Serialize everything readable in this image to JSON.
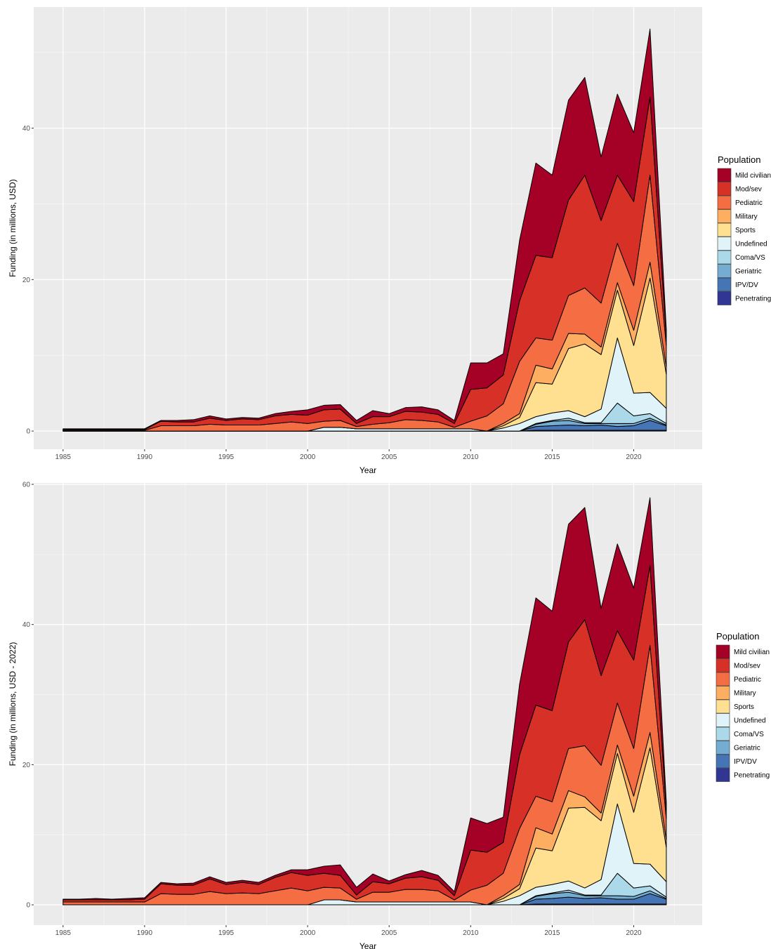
{
  "chart_data": [
    {
      "type": "area",
      "stacked": true,
      "title": "",
      "xlabel": "Year",
      "ylabel": "Funding (in millions, USD)",
      "xlim": [
        1983.2,
        2024.2
      ],
      "ylim": [
        -2.4,
        56
      ],
      "x_ticks": [
        "1985",
        "1990",
        "1995",
        "2000",
        "2005",
        "2010",
        "2015",
        "2020"
      ],
      "y_ticks": [
        "0",
        "20",
        "40"
      ],
      "grid": true,
      "legend_title": "Population",
      "legend_position": "right",
      "x": [
        1985,
        1986,
        1987,
        1988,
        1989,
        1990,
        1991,
        1992,
        1993,
        1994,
        1995,
        1996,
        1997,
        1998,
        1999,
        2000,
        2001,
        2002,
        2003,
        2004,
        2005,
        2006,
        2007,
        2008,
        2009,
        2010,
        2011,
        2012,
        2013,
        2014,
        2015,
        2016,
        2017,
        2018,
        2019,
        2020,
        2021,
        2022
      ],
      "series": [
        {
          "name": "Penetrating",
          "color": "#313695",
          "values": [
            0,
            0,
            0,
            0,
            0,
            0,
            0,
            0,
            0,
            0,
            0,
            0,
            0,
            0,
            0,
            0,
            0,
            0,
            0,
            0,
            0,
            0,
            0,
            0,
            0,
            0,
            0,
            0,
            0,
            0.1,
            0.1,
            0.1,
            0.1,
            0.1,
            0.1,
            0.1,
            0.1,
            0.1
          ]
        },
        {
          "name": "IPV/DV",
          "color": "#4575b4",
          "values": [
            0,
            0,
            0,
            0,
            0,
            0,
            0,
            0,
            0,
            0,
            0,
            0,
            0,
            0,
            0,
            0,
            0,
            0,
            0,
            0,
            0,
            0,
            0,
            0,
            0,
            0,
            0,
            0,
            0,
            0.5,
            0.6,
            0.7,
            0.6,
            0.7,
            0.5,
            0.6,
            1.3,
            0.6
          ]
        },
        {
          "name": "Geriatric",
          "color": "#74add1",
          "values": [
            0,
            0,
            0,
            0,
            0,
            0,
            0,
            0,
            0,
            0,
            0,
            0,
            0,
            0,
            0,
            0,
            0,
            0,
            0,
            0,
            0,
            0,
            0,
            0,
            0,
            0,
            0,
            0,
            0,
            0.3,
            0.6,
            0.6,
            0.3,
            0.2,
            0.4,
            0.3,
            0.3,
            0.1
          ]
        },
        {
          "name": "Coma/VS",
          "color": "#abd9e9",
          "values": [
            0,
            0,
            0,
            0,
            0,
            0,
            0,
            0,
            0,
            0,
            0,
            0,
            0,
            0,
            0,
            0,
            0,
            0,
            0,
            0,
            0,
            0,
            0,
            0,
            0,
            0,
            0,
            0,
            0,
            0.1,
            0.1,
            0.3,
            0.1,
            0.1,
            2.7,
            1.0,
            0.6,
            0.2
          ]
        },
        {
          "name": "Undefined",
          "color": "#e0f3f8",
          "values": [
            0,
            0,
            0,
            0,
            0,
            0,
            0,
            0,
            0,
            0,
            0,
            0,
            0,
            0,
            0,
            0,
            0.5,
            0.5,
            0.3,
            0.3,
            0.3,
            0.3,
            0.3,
            0.3,
            0.3,
            0.3,
            0,
            0.4,
            1.0,
            0.9,
            1.0,
            1.0,
            0.8,
            1.8,
            8.6,
            3.0,
            2.8,
            2.0
          ]
        },
        {
          "name": "Sports",
          "color": "#fee090",
          "values": [
            0,
            0,
            0,
            0,
            0,
            0,
            0,
            0,
            0,
            0,
            0,
            0,
            0,
            0,
            0,
            0,
            0,
            0,
            0,
            0,
            0,
            0,
            0,
            0,
            0,
            0,
            0,
            0.3,
            0.8,
            4.5,
            3.8,
            8.2,
            9.6,
            7.2,
            6.3,
            6.3,
            15.1,
            4.5
          ]
        },
        {
          "name": "Military",
          "color": "#fdae61",
          "values": [
            0,
            0,
            0,
            0,
            0,
            0,
            0,
            0,
            0,
            0,
            0,
            0,
            0,
            0,
            0,
            0,
            0,
            0,
            0,
            0,
            0,
            0,
            0,
            0,
            0,
            0,
            0,
            0.3,
            0.5,
            2.3,
            2.0,
            2.0,
            1.3,
            1.0,
            1.0,
            2.0,
            2.1,
            1.0
          ]
        },
        {
          "name": "Pediatric",
          "color": "#f46d43",
          "values": [
            0.1,
            0.1,
            0.1,
            0.1,
            0.1,
            0.1,
            0.7,
            0.7,
            0.7,
            0.9,
            0.8,
            0.8,
            0.8,
            1.0,
            1.2,
            1.0,
            0.8,
            0.9,
            0.3,
            0.6,
            0.8,
            1.2,
            1.1,
            0.9,
            0.2,
            1.0,
            2.0,
            2.6,
            6.9,
            3.6,
            3.8,
            5.0,
            6.1,
            5.8,
            5.2,
            5.9,
            11.5,
            2.8
          ]
        },
        {
          "name": "Mod/sev",
          "color": "#d73027",
          "values": [
            0.1,
            0.1,
            0.1,
            0.1,
            0.1,
            0.1,
            0.6,
            0.5,
            0.5,
            0.8,
            0.6,
            0.8,
            0.7,
            1.0,
            1.0,
            1.1,
            1.5,
            1.5,
            0.4,
            1.0,
            0.8,
            1.1,
            1.1,
            1.0,
            0.5,
            4.2,
            3.7,
            3.8,
            8.0,
            10.9,
            10.9,
            12.6,
            14.9,
            10.9,
            9.0,
            11.1,
            10.3,
            1.1
          ]
        },
        {
          "name": "Mild civilian",
          "color": "#a50026",
          "values": [
            0.1,
            0.1,
            0.1,
            0.1,
            0.1,
            0.1,
            0.1,
            0.2,
            0.3,
            0.3,
            0.2,
            0.2,
            0.2,
            0.3,
            0.4,
            0.7,
            0.6,
            0.6,
            0.4,
            0.8,
            0.4,
            0.5,
            0.7,
            0.6,
            0.4,
            3.5,
            3.3,
            2.8,
            8.0,
            12.2,
            10.9,
            13.2,
            12.9,
            8.4,
            10.7,
            9.1,
            9.0,
            1.0
          ]
        }
      ]
    },
    {
      "type": "area",
      "stacked": true,
      "title": "",
      "xlabel": "Year",
      "ylabel": "Funding (in millions, USD - 2022)",
      "xlim": [
        1983.2,
        2024.2
      ],
      "ylim": [
        -2.9,
        60.2
      ],
      "x_ticks": [
        "1985",
        "1990",
        "1995",
        "2000",
        "2005",
        "2010",
        "2015",
        "2020"
      ],
      "y_ticks": [
        "0",
        "20",
        "40",
        "60"
      ],
      "grid": true,
      "legend_title": "Population",
      "legend_position": "right",
      "x": [
        1985,
        1986,
        1987,
        1988,
        1989,
        1990,
        1991,
        1992,
        1993,
        1994,
        1995,
        1996,
        1997,
        1998,
        1999,
        2000,
        2001,
        2002,
        2003,
        2004,
        2005,
        2006,
        2007,
        2008,
        2009,
        2010,
        2011,
        2012,
        2013,
        2014,
        2015,
        2016,
        2017,
        2018,
        2019,
        2020,
        2021,
        2022
      ],
      "series": [
        {
          "name": "Penetrating",
          "color": "#313695",
          "values": [
            0,
            0,
            0,
            0,
            0,
            0,
            0,
            0,
            0,
            0,
            0,
            0,
            0,
            0,
            0,
            0,
            0,
            0,
            0,
            0,
            0,
            0,
            0,
            0,
            0,
            0,
            0,
            0,
            0,
            0.1,
            0.1,
            0.1,
            0.1,
            0.1,
            0.1,
            0.1,
            0.1,
            0.1
          ]
        },
        {
          "name": "IPV/DV",
          "color": "#4575b4",
          "values": [
            0,
            0,
            0,
            0,
            0,
            0,
            0,
            0,
            0,
            0,
            0,
            0,
            0,
            0,
            0,
            0,
            0,
            0,
            0,
            0,
            0,
            0,
            0,
            0,
            0,
            0,
            0,
            0,
            0,
            0.7,
            0.8,
            1.0,
            0.8,
            0.9,
            0.7,
            0.7,
            1.5,
            0.7
          ]
        },
        {
          "name": "Geriatric",
          "color": "#74add1",
          "values": [
            0,
            0,
            0,
            0,
            0,
            0,
            0,
            0,
            0,
            0,
            0,
            0,
            0,
            0,
            0,
            0,
            0,
            0,
            0,
            0,
            0,
            0,
            0,
            0,
            0,
            0,
            0,
            0,
            0,
            0.4,
            0.7,
            0.7,
            0.4,
            0.3,
            0.5,
            0.4,
            0.4,
            0.1
          ]
        },
        {
          "name": "Coma/VS",
          "color": "#abd9e9",
          "values": [
            0,
            0,
            0,
            0,
            0,
            0,
            0,
            0,
            0,
            0,
            0,
            0,
            0,
            0,
            0,
            0,
            0,
            0,
            0,
            0,
            0,
            0,
            0,
            0,
            0,
            0,
            0,
            0,
            0,
            0.1,
            0.1,
            0.3,
            0.1,
            0.1,
            3.2,
            1.2,
            0.7,
            0.2
          ]
        },
        {
          "name": "Undefined",
          "color": "#e0f3f8",
          "values": [
            0,
            0,
            0,
            0,
            0,
            0,
            0,
            0,
            0,
            0,
            0,
            0,
            0,
            0,
            0,
            0,
            0.7,
            0.7,
            0.4,
            0.4,
            0.4,
            0.4,
            0.4,
            0.4,
            0.4,
            0.4,
            0,
            0.5,
            1.3,
            1.2,
            1.2,
            1.3,
            1.0,
            2.2,
            9.9,
            3.5,
            3.1,
            2.2
          ]
        },
        {
          "name": "Sports",
          "color": "#fee090",
          "values": [
            0,
            0,
            0,
            0,
            0,
            0,
            0,
            0,
            0,
            0,
            0,
            0,
            0,
            0,
            0,
            0,
            0,
            0,
            0,
            0,
            0,
            0,
            0,
            0,
            0,
            0,
            0,
            0.4,
            1.0,
            5.6,
            4.8,
            10.4,
            11.5,
            8.4,
            7.2,
            7.3,
            16.6,
            4.9
          ]
        },
        {
          "name": "Military",
          "color": "#fdae61",
          "values": [
            0,
            0,
            0,
            0,
            0,
            0,
            0,
            0,
            0,
            0,
            0,
            0,
            0,
            0,
            0,
            0,
            0,
            0,
            0,
            0,
            0,
            0,
            0,
            0,
            0,
            0,
            0,
            0.4,
            0.6,
            2.9,
            2.4,
            2.5,
            1.5,
            1.1,
            1.2,
            2.3,
            2.2,
            1.1
          ]
        },
        {
          "name": "Pediatric",
          "color": "#f46d43",
          "values": [
            0.4,
            0.4,
            0.4,
            0.4,
            0.4,
            0.4,
            1.6,
            1.5,
            1.5,
            1.9,
            1.6,
            1.7,
            1.6,
            2.0,
            2.4,
            2.0,
            1.8,
            1.7,
            0.4,
            1.4,
            1.4,
            1.8,
            1.8,
            1.6,
            0.3,
            1.7,
            2.8,
            3.2,
            8.0,
            4.5,
            4.6,
            6.0,
            7.3,
            6.8,
            6.0,
            6.8,
            12.4,
            3.0
          ]
        },
        {
          "name": "Mod/sev",
          "color": "#d73027",
          "values": [
            0.3,
            0.3,
            0.3,
            0.3,
            0.3,
            0.4,
            1.4,
            1.3,
            1.3,
            1.8,
            1.3,
            1.5,
            1.3,
            1.9,
            2.2,
            2.2,
            2.0,
            1.8,
            0.6,
            1.5,
            1.2,
            1.6,
            1.8,
            1.5,
            0.6,
            5.7,
            4.7,
            4.4,
            10.5,
            13.0,
            13.0,
            15.2,
            18.0,
            12.8,
            10.3,
            12.6,
            11.4,
            1.2
          ]
        },
        {
          "name": "Mild civilian",
          "color": "#a50026",
          "values": [
            0.1,
            0.1,
            0.2,
            0.1,
            0.2,
            0.2,
            0.2,
            0.2,
            0.3,
            0.3,
            0.3,
            0.3,
            0.3,
            0.3,
            0.4,
            0.8,
            1.0,
            1.5,
            1.1,
            1.1,
            0.4,
            0.5,
            0.9,
            0.7,
            0.6,
            4.6,
            4.1,
            3.6,
            10.1,
            15.3,
            14.2,
            16.8,
            16.0,
            9.6,
            12.4,
            10.3,
            9.7,
            1.1
          ]
        }
      ]
    }
  ]
}
